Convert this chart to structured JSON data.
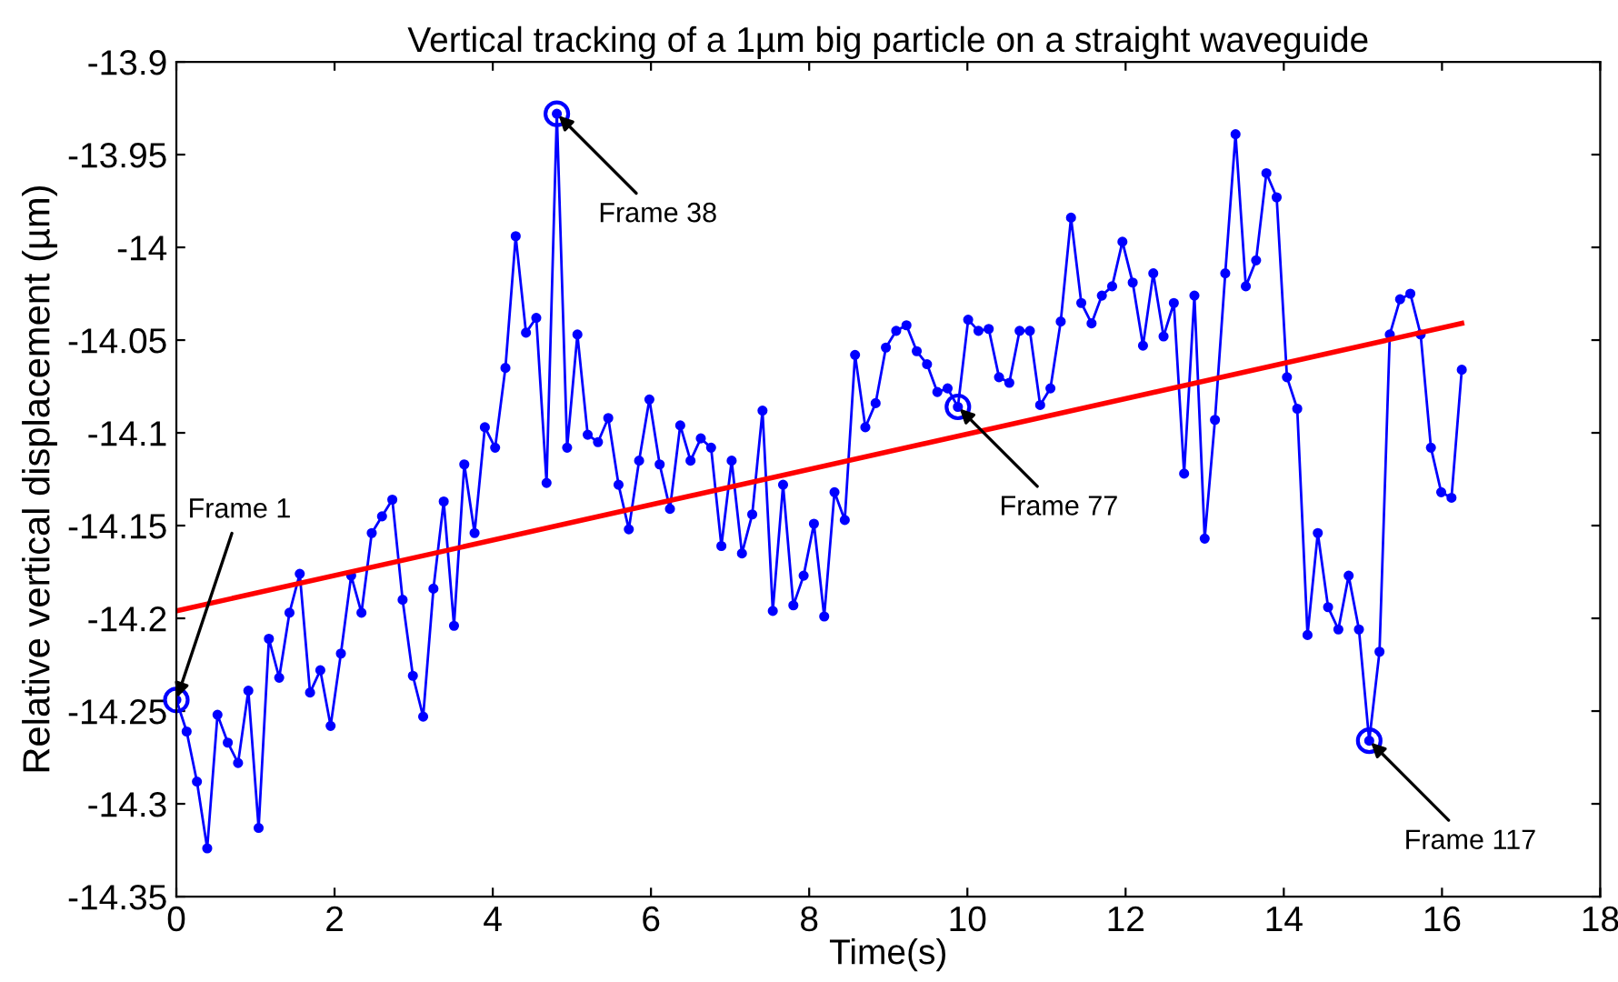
{
  "chart_data": {
    "type": "line",
    "title": "Vertical tracking of a 1µm big particle on a straight waveguide",
    "xlabel": "Time(s)",
    "ylabel": "Relative vertical displacement (µm)",
    "xlim": [
      0,
      18
    ],
    "xticks": [
      0,
      2,
      4,
      6,
      8,
      10,
      12,
      14,
      16,
      18
    ],
    "ylim": [
      -14.35,
      -13.9
    ],
    "yticks": [
      -14.35,
      -14.3,
      -14.25,
      -14.2,
      -14.15,
      -14.1,
      -14.05,
      -14,
      -13.95,
      -13.9
    ],
    "grid": false,
    "legend": false,
    "series": [
      {
        "color": "#0000ff",
        "marker": "circle",
        "line_style": "solid",
        "x": [
          0,
          0.13,
          0.26,
          0.39,
          0.52,
          0.65,
          0.78,
          0.91,
          1.04,
          1.17,
          1.3,
          1.43,
          1.56,
          1.69,
          1.82,
          1.95,
          2.08,
          2.21,
          2.34,
          2.47,
          2.6,
          2.73,
          2.86,
          2.99,
          3.12,
          3.25,
          3.38,
          3.51,
          3.64,
          3.77,
          3.9,
          4.03,
          4.16,
          4.29,
          4.42,
          4.55,
          4.68,
          4.81,
          4.94,
          5.07,
          5.2,
          5.33,
          5.46,
          5.59,
          5.72,
          5.85,
          5.98,
          6.11,
          6.24,
          6.37,
          6.5,
          6.63,
          6.76,
          6.89,
          7.02,
          7.15,
          7.28,
          7.41,
          7.54,
          7.67,
          7.8,
          7.93,
          8.06,
          8.19,
          8.32,
          8.45,
          8.58,
          8.71,
          8.84,
          8.97,
          9.1,
          9.23,
          9.36,
          9.49,
          9.62,
          9.75,
          9.88,
          10.01,
          10.14,
          10.27,
          10.4,
          10.53,
          10.66,
          10.79,
          10.92,
          11.05,
          11.18,
          11.31,
          11.44,
          11.57,
          11.7,
          11.83,
          11.96,
          12.09,
          12.22,
          12.35,
          12.48,
          12.61,
          12.74,
          12.87,
          13,
          13.13,
          13.26,
          13.39,
          13.52,
          13.65,
          13.78,
          13.91,
          14.04,
          14.17,
          14.3,
          14.43,
          14.56,
          14.69,
          14.82,
          14.95,
          15.08,
          15.21,
          15.34,
          15.47,
          15.6,
          15.73,
          15.86,
          15.99,
          16.12,
          16.25
        ],
        "values": [
          -14.244,
          -14.261,
          -14.288,
          -14.324,
          -14.252,
          -14.267,
          -14.278,
          -14.239,
          -14.313,
          -14.211,
          -14.232,
          -14.197,
          -14.176,
          -14.24,
          -14.228,
          -14.258,
          -14.219,
          -14.177,
          -14.197,
          -14.154,
          -14.145,
          -14.136,
          -14.19,
          -14.231,
          -14.253,
          -14.184,
          -14.137,
          -14.204,
          -14.117,
          -14.154,
          -14.097,
          -14.108,
          -14.065,
          -13.994,
          -14.046,
          -14.038,
          -14.127,
          -13.928,
          -14.108,
          -14.047,
          -14.101,
          -14.105,
          -14.092,
          -14.128,
          -14.152,
          -14.115,
          -14.082,
          -14.117,
          -14.141,
          -14.096,
          -14.115,
          -14.103,
          -14.108,
          -14.161,
          -14.115,
          -14.165,
          -14.144,
          -14.088,
          -14.196,
          -14.128,
          -14.193,
          -14.177,
          -14.149,
          -14.199,
          -14.132,
          -14.147,
          -14.058,
          -14.097,
          -14.084,
          -14.054,
          -14.045,
          -14.042,
          -14.056,
          -14.063,
          -14.078,
          -14.076,
          -14.086,
          -14.039,
          -14.045,
          -14.044,
          -14.07,
          -14.073,
          -14.045,
          -14.045,
          -14.085,
          -14.076,
          -14.04,
          -13.984,
          -14.03,
          -14.041,
          -14.026,
          -14.021,
          -13.997,
          -14.019,
          -14.053,
          -14.014,
          -14.048,
          -14.03,
          -14.122,
          -14.026,
          -14.157,
          -14.093,
          -14.014,
          -13.939,
          -14.021,
          -14.007,
          -13.96,
          -13.973,
          -14.07,
          -14.087,
          -14.209,
          -14.154,
          -14.194,
          -14.206,
          -14.177,
          -14.206,
          -14.266,
          -14.218,
          -14.047,
          -14.028,
          -14.025,
          -14.047,
          -14.108,
          -14.132,
          -14.135,
          -14.066
        ]
      },
      {
        "color": "#ff0000",
        "marker": "none",
        "line_style": "solid",
        "x": [
          0,
          16.25
        ],
        "values": [
          -14.196,
          -14.041
        ]
      }
    ],
    "annotations": [
      {
        "text": "Frame 1",
        "x": 0,
        "y": -14.244
      },
      {
        "text": "Frame 38",
        "x": 4.81,
        "y": -13.928
      },
      {
        "text": "Frame 77",
        "x": 9.88,
        "y": -14.086
      },
      {
        "text": "Frame 117",
        "x": 15.08,
        "y": -14.266
      }
    ]
  }
}
